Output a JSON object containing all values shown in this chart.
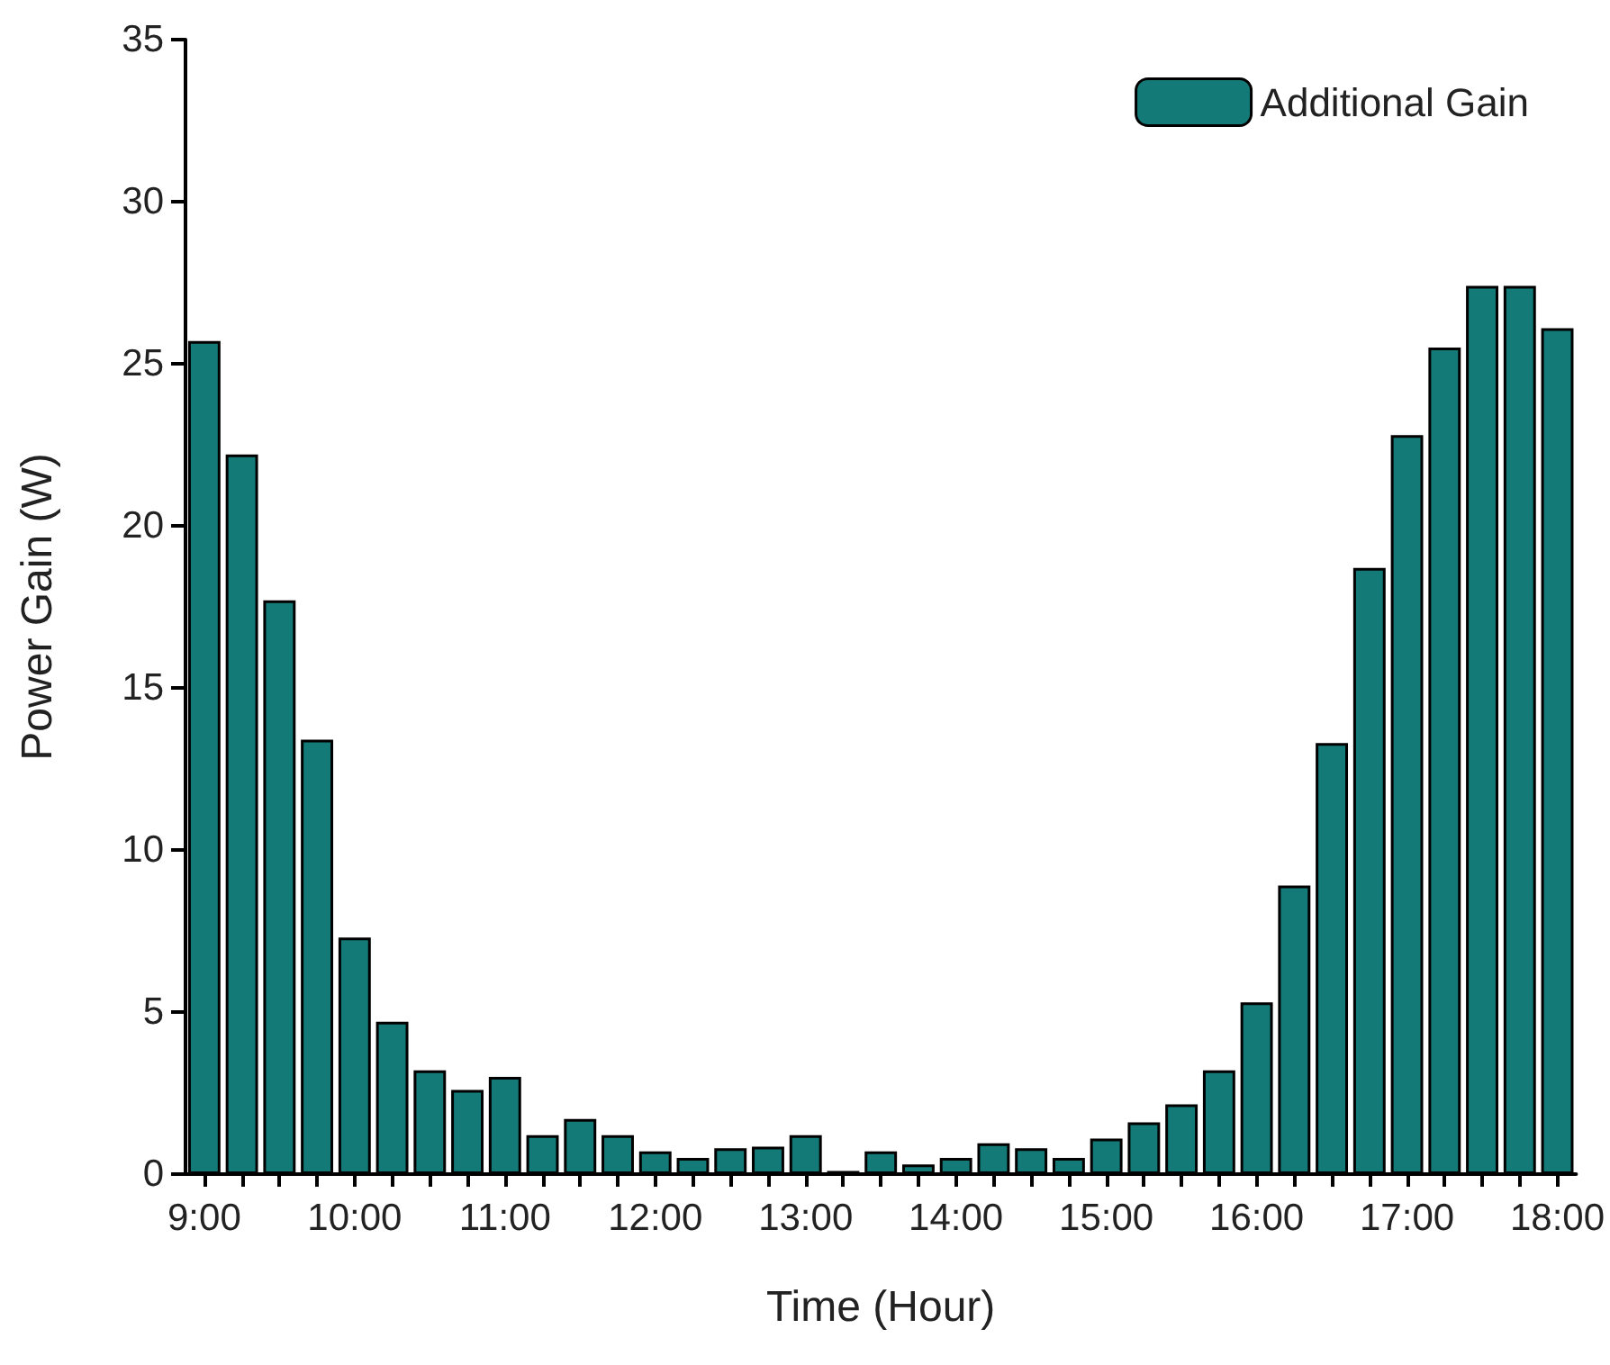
{
  "chart_data": {
    "type": "bar",
    "xlabel": "Time (Hour)",
    "ylabel": "Power Gain (W)",
    "categories": [
      "9:00",
      null,
      null,
      null,
      "10:00",
      null,
      null,
      null,
      "11:00",
      null,
      null,
      null,
      "12:00",
      null,
      null,
      null,
      "13:00",
      null,
      null,
      null,
      "14:00",
      null,
      null,
      null,
      "15:00",
      null,
      null,
      null,
      "16:00",
      null,
      null,
      null,
      "17:00",
      null,
      null,
      null,
      "18:00"
    ],
    "series": [
      {
        "name": "Additional Gain",
        "color": "#137a78",
        "values": [
          25.7,
          22.2,
          17.7,
          13.4,
          7.3,
          4.7,
          3.2,
          2.6,
          3.0,
          1.2,
          1.7,
          1.2,
          0.7,
          0.5,
          0.8,
          0.85,
          1.2,
          0.1,
          0.7,
          0.3,
          0.5,
          0.95,
          0.8,
          0.5,
          1.1,
          1.6,
          2.15,
          3.2,
          5.3,
          8.9,
          13.3,
          18.7,
          22.8,
          25.5,
          27.4,
          27.4,
          26.1
        ]
      }
    ],
    "ylim": [
      0,
      35
    ],
    "yticks": [
      0,
      5,
      10,
      15,
      20,
      25,
      30,
      35
    ],
    "grid": false,
    "legend": "top right"
  }
}
